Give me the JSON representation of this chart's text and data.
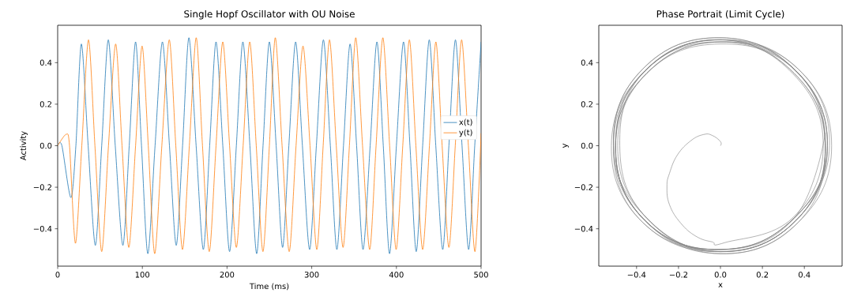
{
  "chart_data": [
    {
      "type": "line",
      "title": "Single Hopf Oscillator with OU Noise",
      "xlabel": "Time (ms)",
      "ylabel": "Activity",
      "xlim": [
        0,
        500
      ],
      "xticks": [
        0,
        100,
        200,
        300,
        400,
        500
      ],
      "ylim": [
        -0.58,
        0.58
      ],
      "yticks": [
        {
          "value": -0.4,
          "label": "−0.4"
        },
        {
          "value": -0.2,
          "label": "−0.2"
        },
        {
          "value": 0.0,
          "label": "0.0"
        },
        {
          "value": 0.2,
          "label": "0.2"
        },
        {
          "value": 0.4,
          "label": "0.4"
        }
      ],
      "legend": "right",
      "marker": "none",
      "line_style": "solid",
      "series": [
        {
          "name": "x(t)",
          "color": "#1f77b4",
          "x": [
            0,
            5,
            15.6,
            21.5,
            28,
            36,
            44.5,
            52,
            59.8,
            68,
            77,
            84.5,
            92,
            99,
            106.5,
            115,
            123.7,
            132,
            140,
            147.5,
            155,
            163.5,
            172,
            179.5,
            187,
            195,
            203,
            211,
            218.7,
            227,
            235,
            242.5,
            250,
            258,
            265.6,
            273,
            281,
            289,
            297.5,
            305.5,
            313.8,
            322,
            329.7,
            337.5,
            345.3,
            353,
            360.6,
            369,
            377,
            384.5,
            391.9,
            400,
            408.4,
            416,
            423.4,
            431,
            438.8,
            446.5,
            454.7,
            462,
            469.7,
            477.5,
            485.3,
            492.5,
            500
          ],
          "values": [
            0,
            0,
            -0.25,
            0,
            0.49,
            0,
            -0.48,
            0,
            0.51,
            0,
            -0.48,
            0,
            0.5,
            0,
            -0.52,
            0,
            0.5,
            0,
            -0.48,
            0,
            0.52,
            0,
            -0.5,
            0,
            0.5,
            0,
            -0.51,
            0,
            0.5,
            0,
            -0.52,
            0,
            0.5,
            0,
            -0.49,
            0,
            0.5,
            0,
            -0.5,
            0,
            0.51,
            0,
            -0.5,
            0,
            0.49,
            0,
            -0.5,
            0,
            0.5,
            0,
            -0.52,
            0,
            0.5,
            0,
            -0.51,
            0,
            0.51,
            0,
            -0.5,
            0,
            0.51,
            0,
            -0.5,
            0,
            0.5
          ]
        },
        {
          "name": "y(t)",
          "color": "#ff7f0e",
          "x": [
            0,
            10,
            14,
            21,
            28.5,
            36.4,
            44,
            52,
            60,
            68.5,
            76,
            84,
            92,
            99.7,
            107,
            114.6,
            123,
            131.8,
            139.5,
            147.4,
            155.5,
            163.6,
            171,
            179,
            187,
            195,
            203,
            211,
            219,
            226.8,
            234.5,
            242.4,
            250,
            257,
            265,
            273.4,
            281.5,
            289.7,
            298,
            306,
            313.5,
            321,
            329,
            337,
            344.5,
            352,
            360,
            368.4,
            376,
            384,
            392,
            399.7,
            407.5,
            415.3,
            423,
            431,
            439,
            446.6,
            454,
            462,
            469.5,
            477,
            485,
            492.8,
            500
          ],
          "values": [
            0,
            0.055,
            0,
            -0.47,
            0,
            0.51,
            0,
            -0.51,
            0,
            0.49,
            0,
            -0.49,
            0,
            0.48,
            0,
            -0.52,
            0,
            0.51,
            0,
            -0.5,
            0,
            0.52,
            0,
            -0.51,
            0,
            0.5,
            0,
            -0.49,
            0,
            0.5,
            0,
            -0.51,
            0,
            0.52,
            0,
            -0.51,
            0,
            0.48,
            0,
            -0.5,
            0,
            0.51,
            0,
            -0.49,
            0,
            0.52,
            0,
            -0.5,
            0,
            0.52,
            0,
            -0.5,
            0,
            0.51,
            0,
            -0.5,
            0,
            0.5,
            0,
            -0.49,
            0,
            0.51,
            0,
            -0.51,
            0.06
          ]
        }
      ]
    },
    {
      "type": "line",
      "title": "Phase Portrait (Limit Cycle)",
      "xlabel": "x",
      "ylabel": "y",
      "xlim": [
        -0.58,
        0.58
      ],
      "xticks": [
        {
          "value": -0.4,
          "label": "−0.4"
        },
        {
          "value": -0.2,
          "label": "−0.2"
        },
        {
          "value": 0.0,
          "label": "0.0"
        },
        {
          "value": 0.2,
          "label": "0.2"
        },
        {
          "value": 0.4,
          "label": "0.4"
        }
      ],
      "ylim": [
        -0.58,
        0.58
      ],
      "yticks": [
        {
          "value": -0.4,
          "label": "−0.4"
        },
        {
          "value": -0.2,
          "label": "−0.2"
        },
        {
          "value": 0.0,
          "label": "0.0"
        },
        {
          "value": 0.2,
          "label": "0.2"
        },
        {
          "value": 0.4,
          "label": "0.4"
        }
      ],
      "marker": "none",
      "line_style": "solid",
      "series": [
        {
          "color": "#808080",
          "x": [
            0,
            0,
            -0.04,
            -0.08,
            -0.14,
            -0.205,
            -0.243,
            -0.255,
            -0.243,
            -0.19,
            -0.117,
            -0.04,
            0.02,
            0.346,
            0.49,
            0.346,
            0,
            -0.36,
            -0.48,
            -0.35,
            0,
            0.36,
            0.51,
            0.36,
            0,
            -0.35,
            -0.5,
            -0.36,
            0,
            0.37,
            0.5,
            0.35,
            0,
            -0.36,
            -0.51,
            -0.37,
            0,
            0.35,
            0.52,
            0.37,
            0,
            -0.35,
            -0.5,
            -0.36,
            0,
            0.36,
            0.5,
            0.36,
            0,
            -0.37,
            -0.51,
            -0.36,
            0,
            0.35,
            0.51,
            0.36,
            0,
            -0.35,
            -0.49,
            -0.35,
            0,
            0.37,
            0.53,
            0.37,
            0,
            -0.36,
            -0.52,
            -0.37,
            0,
            0.36,
            0.5,
            0.35,
            0,
            -0.36,
            -0.5,
            -0.36,
            0,
            0.35,
            0.51,
            0.36,
            0,
            -0.37,
            -0.51,
            -0.35,
            0,
            0.36,
            0.5,
            0.36,
            0,
            -0.36,
            -0.5,
            -0.36,
            0,
            0.35,
            0.5
          ],
          "values": [
            0,
            0.02,
            0.05,
            0.054,
            0.025,
            -0.044,
            -0.133,
            -0.196,
            -0.284,
            -0.372,
            -0.436,
            -0.463,
            -0.467,
            -0.346,
            0,
            0.346,
            0.51,
            0.36,
            0,
            -0.35,
            -0.51,
            -0.36,
            0,
            0.36,
            0.49,
            0.35,
            0,
            -0.36,
            -0.52,
            -0.37,
            0,
            0.35,
            0.51,
            0.36,
            0,
            -0.37,
            -0.5,
            -0.35,
            0,
            0.37,
            0.5,
            0.35,
            0,
            -0.36,
            -0.51,
            -0.36,
            0,
            0.36,
            0.52,
            0.37,
            0,
            -0.36,
            -0.5,
            -0.35,
            0,
            0.36,
            0.5,
            0.35,
            0,
            -0.35,
            -0.52,
            -0.37,
            0,
            0.37,
            0.51,
            0.36,
            0,
            -0.37,
            -0.51,
            -0.36,
            0,
            0.35,
            0.5,
            0.36,
            0,
            -0.36,
            -0.5,
            -0.35,
            0,
            0.36,
            0.52,
            0.37,
            0,
            -0.35,
            -0.51,
            -0.36,
            0,
            0.36,
            0.51,
            0.36,
            0,
            -0.36,
            -0.5,
            -0.35,
            0.06
          ]
        }
      ]
    }
  ]
}
